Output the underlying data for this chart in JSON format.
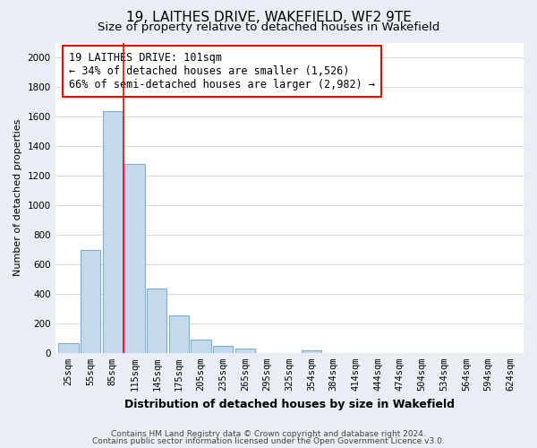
{
  "title": "19, LAITHES DRIVE, WAKEFIELD, WF2 9TE",
  "subtitle": "Size of property relative to detached houses in Wakefield",
  "xlabel": "Distribution of detached houses by size in Wakefield",
  "ylabel": "Number of detached properties",
  "bar_labels": [
    "25sqm",
    "55sqm",
    "85sqm",
    "115sqm",
    "145sqm",
    "175sqm",
    "205sqm",
    "235sqm",
    "265sqm",
    "295sqm",
    "325sqm",
    "354sqm",
    "384sqm",
    "414sqm",
    "444sqm",
    "474sqm",
    "504sqm",
    "534sqm",
    "564sqm",
    "594sqm",
    "624sqm"
  ],
  "bar_values": [
    65,
    695,
    1635,
    1280,
    435,
    255,
    88,
    50,
    30,
    0,
    0,
    18,
    0,
    0,
    0,
    0,
    0,
    0,
    0,
    0,
    0
  ],
  "bar_color": "#c5d9ed",
  "bar_edge_color": "#7bafd4",
  "vline_color": "red",
  "annotation_line1": "19 LAITHES DRIVE: 101sqm",
  "annotation_line2": "← 34% of detached houses are smaller (1,526)",
  "annotation_line3": "66% of semi-detached houses are larger (2,982) →",
  "ylim": [
    0,
    2100
  ],
  "yticks": [
    0,
    200,
    400,
    600,
    800,
    1000,
    1200,
    1400,
    1600,
    1800,
    2000
  ],
  "footnote1": "Contains HM Land Registry data © Crown copyright and database right 2024.",
  "footnote2": "Contains public sector information licensed under the Open Government Licence v3.0.",
  "background_color": "#e8eef4",
  "plot_bg_color": "#ffffff",
  "grid_color": "#c8d4de",
  "title_fontsize": 11,
  "subtitle_fontsize": 9.5,
  "xlabel_fontsize": 9,
  "ylabel_fontsize": 8,
  "tick_fontsize": 7.5,
  "annotation_fontsize": 8.5,
  "footnote_fontsize": 6.5
}
